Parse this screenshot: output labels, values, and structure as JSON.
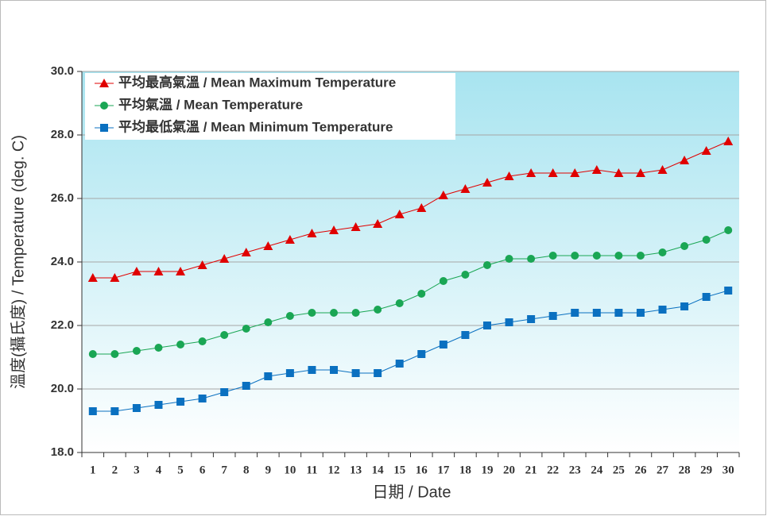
{
  "chart_data": {
    "type": "line",
    "x_label": "日期 / Date",
    "y_label": "溫度(攝氏度) / Temperature (deg. C)",
    "categories": [
      "1",
      "2",
      "3",
      "4",
      "5",
      "6",
      "7",
      "8",
      "9",
      "10",
      "11",
      "12",
      "13",
      "14",
      "15",
      "16",
      "17",
      "18",
      "19",
      "20",
      "21",
      "22",
      "23",
      "24",
      "25",
      "26",
      "27",
      "28",
      "29",
      "30"
    ],
    "series": [
      {
        "name": "平均最高氣溫 / Mean Maximum Temperature",
        "color": "#e00000",
        "marker": "triangle",
        "values": [
          23.5,
          23.5,
          23.7,
          23.7,
          23.7,
          23.9,
          24.1,
          24.3,
          24.5,
          24.7,
          24.9,
          25.0,
          25.1,
          25.2,
          25.5,
          25.7,
          26.1,
          26.3,
          26.5,
          26.7,
          26.8,
          26.8,
          26.8,
          26.9,
          26.8,
          26.8,
          26.9,
          27.2,
          27.5,
          27.8
        ]
      },
      {
        "name": "平均氣溫 / Mean Temperature",
        "color": "#1aa654",
        "marker": "circle",
        "values": [
          21.1,
          21.1,
          21.2,
          21.3,
          21.4,
          21.5,
          21.7,
          21.9,
          22.1,
          22.3,
          22.4,
          22.4,
          22.4,
          22.5,
          22.7,
          23.0,
          23.4,
          23.6,
          23.9,
          24.1,
          24.1,
          24.2,
          24.2,
          24.2,
          24.2,
          24.2,
          24.3,
          24.5,
          24.7,
          25.0
        ]
      },
      {
        "name": "平均最低氣溫 / Mean Minimum Temperature",
        "color": "#0a70c0",
        "marker": "square",
        "values": [
          19.3,
          19.3,
          19.4,
          19.5,
          19.6,
          19.7,
          19.9,
          20.1,
          20.4,
          20.5,
          20.6,
          20.6,
          20.5,
          20.5,
          20.8,
          21.1,
          21.4,
          21.7,
          22.0,
          22.1,
          22.2,
          22.3,
          22.4,
          22.4,
          22.4,
          22.4,
          22.5,
          22.6,
          22.9,
          23.1
        ]
      }
    ],
    "ylim": [
      18,
      30
    ],
    "yticks": [
      {
        "value": 18,
        "label": "18.0"
      },
      {
        "value": 20,
        "label": "20.0"
      },
      {
        "value": 22,
        "label": "22.0"
      },
      {
        "value": 24,
        "label": "24.0"
      },
      {
        "value": 26,
        "label": "26.0"
      },
      {
        "value": 28,
        "label": "28.0"
      },
      {
        "value": 30,
        "label": "30.0"
      }
    ],
    "grid": true,
    "legend_position": "upper left"
  }
}
